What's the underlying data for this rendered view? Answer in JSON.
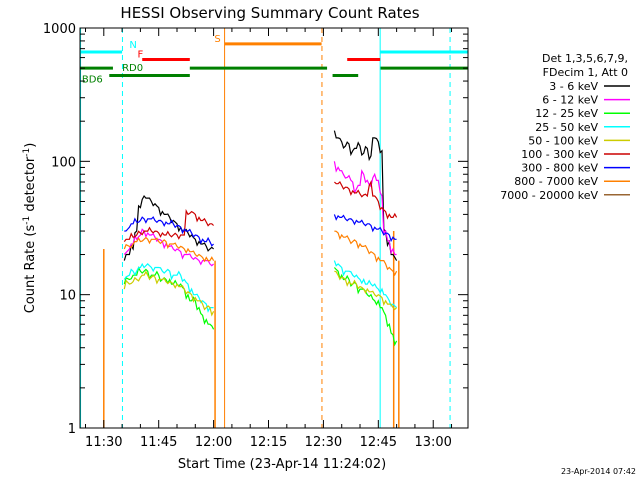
{
  "chart_data": {
    "type": "line",
    "title": "HESSI Observing Summary Count Rates",
    "xlabel": "Start Time (23-Apr-14 11:24:02)",
    "ylabel_main": "Count Rate (s",
    "ylabel_sup1": "-1",
    "ylabel_mid": " detector",
    "ylabel_sup2": "-1",
    "ylabel_end": ")",
    "y_scale": "log",
    "ylim": [
      1,
      1000
    ],
    "xlim_minutes": [
      -6.5,
      99.5
    ],
    "x_origin": "11:30",
    "x_ticks": [
      {
        "label": "11:30",
        "t": 0
      },
      {
        "label": "11:45",
        "t": 15
      },
      {
        "label": "12:00",
        "t": 30
      },
      {
        "label": "12:15",
        "t": 45
      },
      {
        "label": "12:30",
        "t": 60
      },
      {
        "label": "12:45",
        "t": 75
      },
      {
        "label": "13:00",
        "t": 90
      }
    ],
    "y_ticks": [
      {
        "label": "1",
        "v": 1
      },
      {
        "label": "10",
        "v": 10
      },
      {
        "label": "100",
        "v": 100
      },
      {
        "label": "1000",
        "v": 1000
      }
    ],
    "legend": {
      "placement": "right",
      "header": [
        "Det 1,3,5,6,7,9,",
        "FDecim 1, Att 0"
      ]
    },
    "series": [
      {
        "name": "3 - 6 keV",
        "color": "#000000",
        "segments": [
          {
            "t": [
              5.6,
              7,
              8,
              9,
              10,
              11,
              12,
              13,
              14,
              15,
              16,
              17,
              18,
              19,
              20,
              21,
              22,
              23,
              24,
              25,
              26,
              27,
              28,
              29,
              30
            ],
            "v": [
              18,
              20,
              22,
              30,
              45,
              55,
              53,
              50,
              48,
              45,
              42,
              40,
              38,
              36,
              34,
              32,
              30,
              29,
              28,
              26,
              25,
              24,
              23,
              22,
              22
            ]
          },
          {
            "t": [
              63,
              64,
              65,
              66,
              67,
              68,
              69,
              70,
              71,
              72,
              73,
              74,
              75,
              76,
              77,
              78,
              79,
              80
            ],
            "v": [
              170,
              150,
              140,
              130,
              135,
              120,
              125,
              130,
              115,
              125,
              110,
              150,
              140,
              120,
              30,
              25,
              20,
              18
            ]
          }
        ]
      },
      {
        "name": "6 - 12 keV",
        "color": "#ff00ff",
        "segments": [
          {
            "t": [
              5.6,
              7,
              8,
              9,
              10,
              11,
              12,
              13,
              14,
              15,
              16,
              17,
              18,
              19,
              20,
              21,
              22,
              23,
              24,
              25,
              26,
              27,
              28,
              29,
              30
            ],
            "v": [
              20,
              22,
              24,
              26,
              28,
              30,
              29,
              28,
              27,
              26,
              25,
              24,
              23,
              22,
              22,
              21,
              20,
              20,
              19,
              19,
              18,
              18,
              18,
              17,
              17
            ]
          },
          {
            "t": [
              63,
              64,
              65,
              66,
              67,
              68,
              69,
              70,
              71,
              72,
              73,
              74,
              75,
              76,
              77,
              78,
              79,
              80
            ],
            "v": [
              100,
              90,
              85,
              75,
              78,
              70,
              62,
              66,
              80,
              72,
              65,
              80,
              72,
              55,
              30,
              25,
              22,
              20
            ]
          }
        ]
      },
      {
        "name": "12 - 25 keV",
        "color": "#00ff00",
        "segments": [
          {
            "t": [
              5.6,
              7,
              8,
              9,
              10,
              11,
              12,
              13,
              14,
              15,
              16,
              17,
              18,
              19,
              20,
              21,
              22,
              23,
              24,
              25,
              26,
              27,
              28,
              29,
              30
            ],
            "v": [
              12,
              13,
              14,
              14,
              15,
              15,
              15,
              14,
              14,
              14,
              13,
              13,
              13,
              12,
              12,
              12,
              11,
              10,
              9,
              9,
              8,
              7,
              6.5,
              6,
              5.5
            ]
          },
          {
            "t": [
              63,
              64,
              65,
              66,
              67,
              68,
              69,
              70,
              71,
              72,
              73,
              74,
              75,
              76,
              77,
              78,
              79,
              80
            ],
            "v": [
              16,
              15,
              14,
              13,
              13,
              12,
              12,
              11,
              11,
              10,
              10,
              9,
              9,
              8,
              7,
              6,
              5,
              4.5
            ]
          }
        ]
      },
      {
        "name": "25 - 50 keV",
        "color": "#00ffff",
        "segments": [
          {
            "t": [
              5.6,
              7,
              8,
              9,
              10,
              11,
              12,
              13,
              14,
              15,
              16,
              17,
              18,
              19,
              20,
              21,
              22,
              23,
              24,
              25,
              26,
              27,
              28,
              29,
              30
            ],
            "v": [
              13,
              14,
              15,
              15,
              16,
              16,
              17,
              16,
              16,
              16,
              15,
              15,
              15,
              14,
              14,
              14,
              13,
              12,
              11,
              10,
              9.5,
              9,
              8.5,
              8,
              8
            ]
          },
          {
            "t": [
              63,
              64,
              65,
              66,
              67,
              68,
              69,
              70,
              71,
              72,
              73,
              74,
              75,
              76,
              77,
              78,
              79,
              80
            ],
            "v": [
              18,
              17,
              16,
              15,
              15,
              14,
              14,
              13,
              13,
              12,
              12,
              12,
              11,
              11,
              10,
              9,
              8.5,
              8
            ]
          }
        ]
      },
      {
        "name": "50 - 100 keV",
        "color": "#cccc00",
        "segments": [
          {
            "t": [
              5.6,
              7,
              8,
              9,
              10,
              11,
              12,
              13,
              14,
              15,
              16,
              17,
              18,
              19,
              20,
              21,
              22,
              23,
              24,
              25,
              26,
              27,
              28,
              29,
              30
            ],
            "v": [
              11,
              12,
              12.5,
              13,
              13.5,
              14,
              14,
              13.5,
              13.5,
              13,
              13,
              12.5,
              12.5,
              12,
              12,
              11.5,
              11,
              10.5,
              10,
              9.5,
              9,
              8.5,
              8,
              8,
              7.5
            ]
          },
          {
            "t": [
              63,
              64,
              65,
              66,
              67,
              68,
              69,
              70,
              71,
              72,
              73,
              74,
              75,
              76,
              77,
              78,
              79,
              80
            ],
            "v": [
              15,
              14,
              13.5,
              13,
              12.5,
              12,
              12,
              11.5,
              11,
              11,
              10.5,
              10,
              10,
              9.5,
              9,
              8.5,
              8,
              8
            ]
          }
        ]
      },
      {
        "name": "100 - 300 keV",
        "color": "#cc0000",
        "segments": [
          {
            "t": [
              5.6,
              7,
              8,
              9,
              10,
              11,
              12,
              13,
              14,
              15,
              16,
              17,
              18,
              19,
              20,
              21,
              22,
              23,
              24,
              25,
              26,
              27,
              28,
              29,
              30
            ],
            "v": [
              25,
              26,
              27,
              28,
              29,
              30,
              30,
              30,
              30,
              29,
              29,
              28,
              28,
              28,
              28,
              28,
              28,
              40,
              42,
              40,
              38,
              36,
              35,
              34,
              33
            ]
          },
          {
            "t": [
              63,
              64,
              65,
              66,
              67,
              68,
              69,
              70,
              71,
              72,
              73,
              74,
              75,
              76,
              77,
              78,
              79,
              80
            ],
            "v": [
              70,
              68,
              66,
              64,
              62,
              60,
              58,
              57,
              56,
              55,
              70,
              55,
              50,
              45,
              42,
              40,
              38,
              38
            ]
          }
        ]
      },
      {
        "name": "300 - 800 keV",
        "color": "#0000ff",
        "segments": [
          {
            "t": [
              5.6,
              7,
              8,
              9,
              10,
              11,
              12,
              13,
              14,
              15,
              16,
              17,
              18,
              19,
              20,
              21,
              22,
              23,
              24,
              25,
              26,
              27,
              28,
              29,
              30
            ],
            "v": [
              30,
              32,
              34,
              35,
              36,
              37,
              37,
              37,
              36,
              36,
              35,
              35,
              34,
              34,
              33,
              32,
              31,
              30,
              29,
              28,
              27,
              26,
              25,
              25,
              24
            ]
          },
          {
            "t": [
              63,
              64,
              65,
              66,
              67,
              68,
              69,
              70,
              71,
              72,
              73,
              74,
              75,
              76,
              77,
              78,
              79,
              80
            ],
            "v": [
              40,
              39,
              38,
              37,
              37,
              36,
              36,
              35,
              34,
              34,
              33,
              32,
              31,
              30,
              29,
              28,
              27,
              26
            ]
          }
        ]
      },
      {
        "name": "800 - 7000 keV",
        "color": "#ff8000",
        "segments": [
          {
            "t": [
              5.6,
              7,
              8,
              9,
              10,
              11,
              12,
              13,
              14,
              15,
              16,
              17,
              18,
              19,
              20,
              21,
              22,
              23,
              24,
              25,
              26,
              27,
              28,
              29,
              30
            ],
            "v": [
              22,
              23,
              24,
              25,
              25,
              26,
              26,
              26,
              26,
              25,
              25,
              25,
              24,
              24,
              23,
              23,
              22,
              22,
              21,
              20,
              20,
              19,
              19,
              18,
              18
            ]
          },
          {
            "t": [
              63,
              64,
              65,
              66,
              67,
              68,
              69,
              70,
              71,
              72,
              73,
              74,
              75,
              76,
              77,
              78,
              79,
              80
            ],
            "v": [
              30,
              29,
              28,
              27,
              26,
              25,
              25,
              24,
              23,
              22,
              21,
              20,
              19,
              18,
              17,
              16,
              15,
              15
            ]
          }
        ]
      },
      {
        "name": "7000 - 20000 keV",
        "color": "#996633",
        "segments": []
      }
    ],
    "status_bars": [
      {
        "label": "N",
        "color": "#00ffff",
        "y_level": 660,
        "spans": [
          [
            -6.4,
            5.0
          ],
          [
            75.6,
            99.5
          ]
        ]
      },
      {
        "label": "F",
        "color": "#ff0000",
        "y_level": 580,
        "spans": [
          [
            10.5,
            23.5
          ],
          [
            66.5,
            75.5
          ]
        ]
      },
      {
        "label": "RD0",
        "color": "#008000",
        "y_level": 500,
        "spans": [
          [
            -6.4,
            2.5
          ],
          [
            23.5,
            61.0
          ],
          [
            75.6,
            99.5
          ]
        ]
      },
      {
        "label": "BD6",
        "color": "#008000",
        "y_level": 440,
        "spans": [
          [
            1.5,
            23.5
          ],
          [
            62.5,
            69.5
          ]
        ]
      },
      {
        "label": "S",
        "color": "#ff8000",
        "y_level": 760,
        "spans": [
          [
            33.0,
            59.5
          ]
        ]
      }
    ],
    "vlines": [
      {
        "t": -6.35,
        "color": "#00ffff",
        "style": "solid"
      },
      {
        "t": 5.1,
        "color": "#00ffff",
        "style": "dashed"
      },
      {
        "t": 75.5,
        "color": "#00ffff",
        "style": "solid"
      },
      {
        "t": 94.6,
        "color": "#00ffff",
        "style": "dashed"
      },
      {
        "t": 33.0,
        "color": "#ff8000",
        "style": "solid"
      },
      {
        "t": 59.6,
        "color": "#ff8000",
        "style": "dashed"
      }
    ],
    "fill_envelope": {
      "color": "#ff8000",
      "spans": [
        [
          0.0,
          30.4
        ],
        [
          79.2,
          80.6
        ]
      ]
    }
  },
  "stamp": "23-Apr-2014 07:42"
}
